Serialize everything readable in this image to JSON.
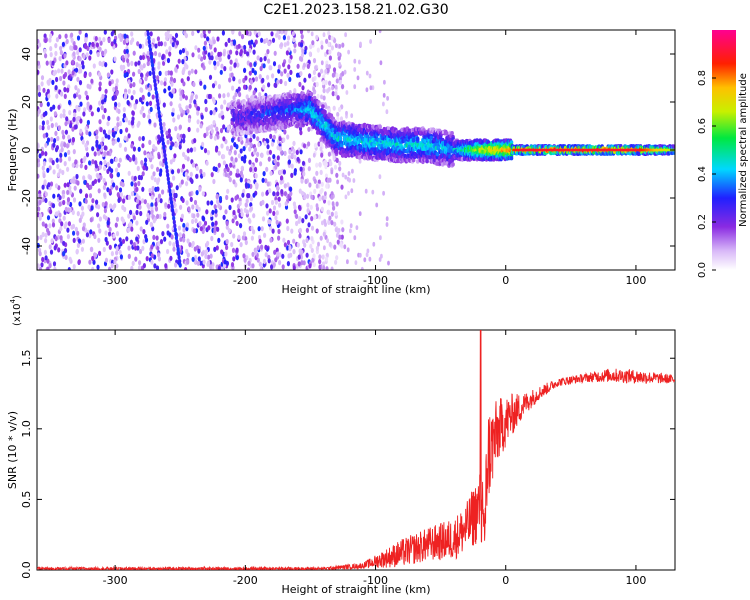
{
  "title": "C2E1.2023.158.21.02.G30",
  "chart_data": [
    {
      "type": "heatmap",
      "xlabel": "Height of straight line (km)",
      "ylabel": "Frequency (Hz)",
      "xlim": [
        -360,
        130
      ],
      "ylim": [
        -50,
        50
      ],
      "x_ticks": [
        -300,
        -200,
        -100,
        0,
        100
      ],
      "y_ticks": [
        -40,
        -20,
        0,
        20,
        40
      ],
      "colorbar": {
        "label": "Normalized spectral amplitude",
        "range": [
          0.0,
          1.0
        ],
        "ticks": [
          0.0,
          0.2,
          0.4,
          0.6,
          0.8
        ],
        "colormap": "rainbow-white-purple-blue-cyan-green-yellow-red-magenta"
      },
      "features": {
        "noise_region_x": [
          -360,
          -150
        ],
        "diagonal_trace": {
          "x": [
            -275,
            -250
          ],
          "y": [
            50,
            -48
          ]
        },
        "spectral_band": {
          "x": [
            -210,
            -160,
            -150,
            -130,
            -100,
            -80,
            -60,
            -40,
            -20,
            0,
            10,
            50,
            100,
            130
          ],
          "center_hz": [
            13,
            17,
            17,
            5,
            3,
            2,
            2,
            0,
            0,
            0,
            0,
            0,
            0,
            0
          ],
          "peak_amp": [
            0.25,
            0.35,
            0.45,
            0.45,
            0.45,
            0.45,
            0.45,
            0.4,
            0.7,
            0.8,
            0.9,
            0.9,
            0.9,
            0.6
          ]
        }
      }
    },
    {
      "type": "line",
      "xlabel": "Height of straight line (km)",
      "ylabel": "SNR (10 * v/v)",
      "y_multiplier_label": "(x10",
      "y_multiplier_exp": "4",
      "xlim": [
        -360,
        130
      ],
      "ylim": [
        0,
        1.7
      ],
      "x_ticks": [
        -300,
        -200,
        -100,
        0,
        100
      ],
      "y_ticks": [
        0.0,
        0.5,
        1.0,
        1.5
      ],
      "y_tick_labels": [
        "0.0",
        "0.5",
        "1.0",
        "1.5"
      ],
      "line_color": "#ee2222",
      "x": [
        -360,
        -140,
        -110,
        -80,
        -60,
        -40,
        -30,
        -20,
        -16,
        -14,
        -5,
        5,
        15,
        25,
        40,
        60,
        80,
        100,
        130
      ],
      "y": [
        0.01,
        0.01,
        0.03,
        0.12,
        0.18,
        0.22,
        0.3,
        0.45,
        0.35,
        0.8,
        1.0,
        1.1,
        1.18,
        1.25,
        1.33,
        1.36,
        1.38,
        1.37,
        1.35
      ],
      "noise_amp": [
        0.01,
        0.01,
        0.02,
        0.1,
        0.12,
        0.15,
        0.18,
        0.25,
        0.3,
        0.35,
        0.22,
        0.15,
        0.08,
        0.05,
        0.03,
        0.03,
        0.05,
        0.05,
        0.03
      ]
    }
  ]
}
